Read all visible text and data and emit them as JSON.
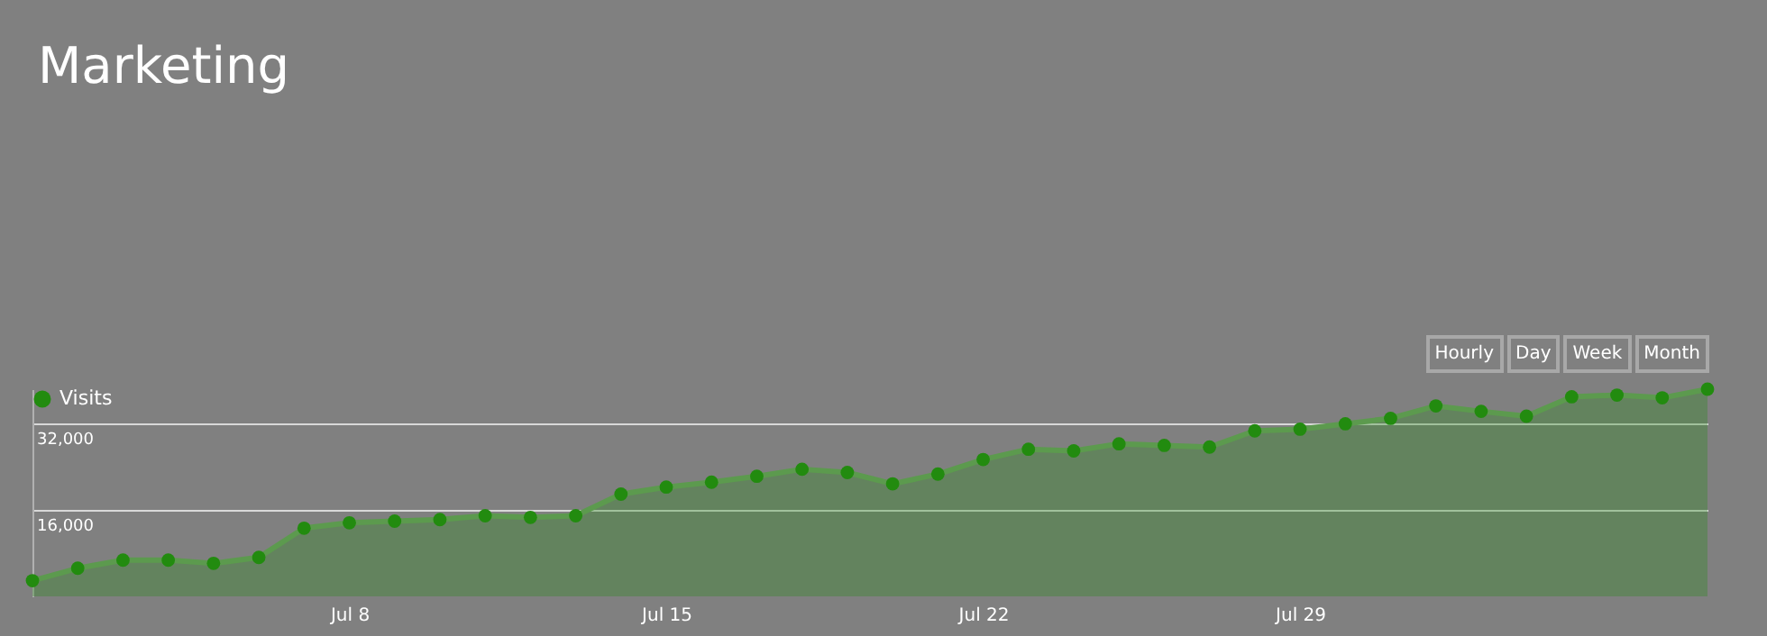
{
  "chart_data": {
    "type": "area",
    "title": "Marketing",
    "x": [
      "--07-01",
      "--07-02",
      "--07-03",
      "--07-04",
      "--07-05",
      "--07-06",
      "--07-07",
      "--07-08",
      "--07-09",
      "--07-10",
      "--07-11",
      "--07-12",
      "--07-13",
      "--07-14",
      "--07-15",
      "--07-16",
      "--07-17",
      "--07-18",
      "--07-19",
      "--07-20",
      "--07-21",
      "--07-22",
      "--07-23",
      "--07-24",
      "--07-25",
      "--07-26",
      "--07-27",
      "--07-28",
      "--07-29",
      "--07-30",
      "--07-31",
      "--08-01",
      "--08-02",
      "--08-03",
      "--08-04",
      "--08-05",
      "--08-06",
      "--08-07"
    ],
    "series": [
      {
        "name": "Visits",
        "color": "#228b0f",
        "values": [
          2900,
          5200,
          6700,
          6700,
          6100,
          7200,
          12600,
          13600,
          13900,
          14200,
          14900,
          14600,
          14900,
          18900,
          20200,
          21100,
          22200,
          23500,
          22900,
          20800,
          22600,
          25300,
          27200,
          26900,
          28200,
          27900,
          27600,
          30600,
          30900,
          31900,
          32900,
          35200,
          34200,
          33300,
          36900,
          37200,
          36700,
          38300
        ]
      }
    ],
    "xlim": [
      "--07-01",
      "--08-07"
    ],
    "xticks": [
      {
        "value": "--07-08",
        "label": "Jul 8"
      },
      {
        "value": "--07-15",
        "label": "Jul 15"
      },
      {
        "value": "--07-22",
        "label": "Jul 22"
      },
      {
        "value": "--07-29",
        "label": "Jul 29"
      }
    ],
    "ylim": [
      0,
      38300
    ],
    "yticks": [
      {
        "value": 16000,
        "label": "16,000"
      },
      {
        "value": 32000,
        "label": "32,000"
      }
    ],
    "grid": "y",
    "legend": "top left",
    "marker": "circle",
    "line_style": "solid",
    "annotations": [
      "Hourly",
      "Day",
      "Week",
      "Month"
    ]
  }
}
